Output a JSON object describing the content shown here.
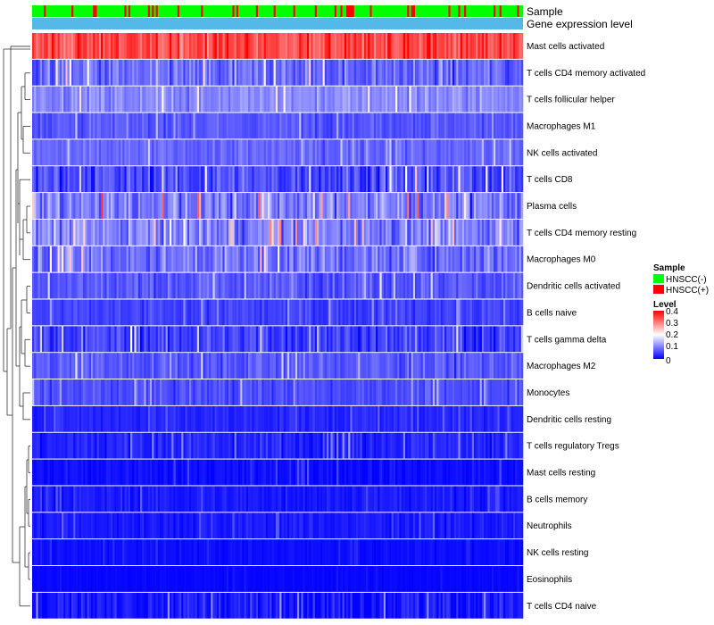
{
  "chart_data": {
    "type": "heatmap",
    "title": "",
    "annotation_labels": {
      "sample": "Sample",
      "gene_expression_level": "Gene expression level"
    },
    "n_samples": 250,
    "rows": [
      {
        "label": "Mast cells activated",
        "mean": 0.34,
        "spread": 0.06
      },
      {
        "label": "T cells CD4 memory activated",
        "mean": 0.08,
        "spread": 0.06
      },
      {
        "label": "T cells follicular helper",
        "mean": 0.11,
        "spread": 0.04
      },
      {
        "label": "Macrophages M1",
        "mean": 0.07,
        "spread": 0.03
      },
      {
        "label": "NK cells activated",
        "mean": 0.08,
        "spread": 0.03
      },
      {
        "label": "T cells CD8",
        "mean": 0.06,
        "spread": 0.06
      },
      {
        "label": "Plasma cells",
        "mean": 0.1,
        "spread": 0.08
      },
      {
        "label": "T cells CD4 memory resting",
        "mean": 0.1,
        "spread": 0.07
      },
      {
        "label": "Macrophages M0",
        "mean": 0.09,
        "spread": 0.06
      },
      {
        "label": "Dendritic cells activated",
        "mean": 0.07,
        "spread": 0.04
      },
      {
        "label": "B cells naive",
        "mean": 0.05,
        "spread": 0.03
      },
      {
        "label": "T cells gamma delta",
        "mean": 0.05,
        "spread": 0.05
      },
      {
        "label": "Macrophages M2",
        "mean": 0.07,
        "spread": 0.04
      },
      {
        "label": "Monocytes",
        "mean": 0.06,
        "spread": 0.03
      },
      {
        "label": "Dendritic cells resting",
        "mean": 0.03,
        "spread": 0.02
      },
      {
        "label": "T cells regulatory  Tregs",
        "mean": 0.03,
        "spread": 0.03
      },
      {
        "label": "Mast cells resting",
        "mean": 0.01,
        "spread": 0.02
      },
      {
        "label": "B cells memory",
        "mean": 0.02,
        "spread": 0.02
      },
      {
        "label": "Neutrophils",
        "mean": 0.02,
        "spread": 0.02
      },
      {
        "label": "NK cells resting",
        "mean": 0.01,
        "spread": 0.01
      },
      {
        "label": "Eosinophils",
        "mean": 0.005,
        "spread": 0.005
      },
      {
        "label": "T cells CD4 naive",
        "mean": 0.02,
        "spread": 0.04
      }
    ],
    "sample_groups": [
      "HNSCC(-)",
      "HNSCC(+)"
    ],
    "group_positive_fraction": 0.18,
    "color_scale": {
      "min": 0,
      "max": 0.4,
      "stops": [
        {
          "value": 0,
          "color": "#0000ff"
        },
        {
          "value": 0.2,
          "color": "#ffffff"
        },
        {
          "value": 0.4,
          "color": "#ff0000"
        }
      ]
    },
    "legend": {
      "sample_title": "Sample",
      "sample_items": [
        {
          "label": "HNSCC(-)",
          "color": "#00ff00"
        },
        {
          "label": "HNSCC(+)",
          "color": "#ff0000"
        }
      ],
      "level_title": "Level",
      "level_ticks": [
        "0.4",
        "0.3",
        "0.2",
        "0.1",
        "0"
      ],
      "placement": "right"
    },
    "annotation_bar_color": "#55b9e8"
  }
}
